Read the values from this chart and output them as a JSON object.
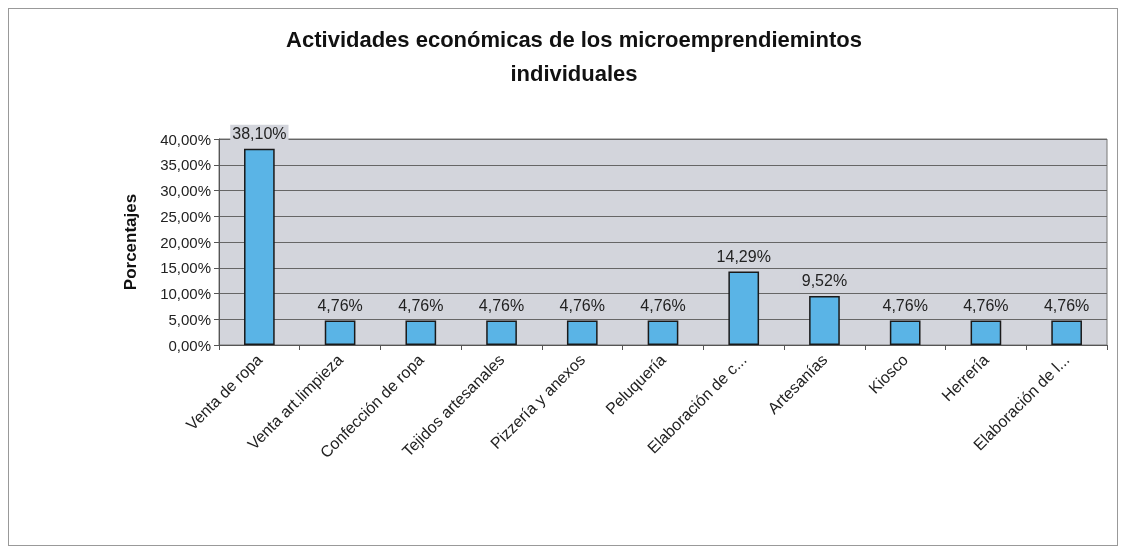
{
  "chart_data": {
    "type": "bar",
    "title": "Actividades económicas de los microemprendiemintos\nindividuales",
    "ylabel": "Porcentajes",
    "categories": [
      "Venta de ropa",
      "Venta art.limpieza",
      "Confección de ropa",
      "Tejidos artesanales",
      "Pizzería y anexos",
      "Peluquería",
      "Elaboración de c...",
      "Artesanías",
      "Kiosco",
      "Herrería",
      "Elaboración de l..."
    ],
    "values": [
      38.1,
      4.76,
      4.76,
      4.76,
      4.76,
      4.76,
      14.29,
      9.52,
      4.76,
      4.76,
      4.76
    ],
    "value_labels": [
      "38,10%",
      "4,76%",
      "4,76%",
      "4,76%",
      "4,76%",
      "4,76%",
      "14,29%",
      "9,52%",
      "4,76%",
      "4,76%",
      "4,76%"
    ],
    "color": "#5ab4e6",
    "ylim": [
      0,
      40
    ],
    "yticks": [
      {
        "value": 0,
        "label": "0,00%"
      },
      {
        "value": 5,
        "label": "5,00%"
      },
      {
        "value": 10,
        "label": "10,00%"
      },
      {
        "value": 15,
        "label": "15,00%"
      },
      {
        "value": 20,
        "label": "20,00%"
      },
      {
        "value": 25,
        "label": "25,00%"
      },
      {
        "value": 30,
        "label": "30,00%"
      },
      {
        "value": 35,
        "label": "35,00%"
      },
      {
        "value": 40,
        "label": "40,00%"
      }
    ],
    "grid": "y"
  }
}
